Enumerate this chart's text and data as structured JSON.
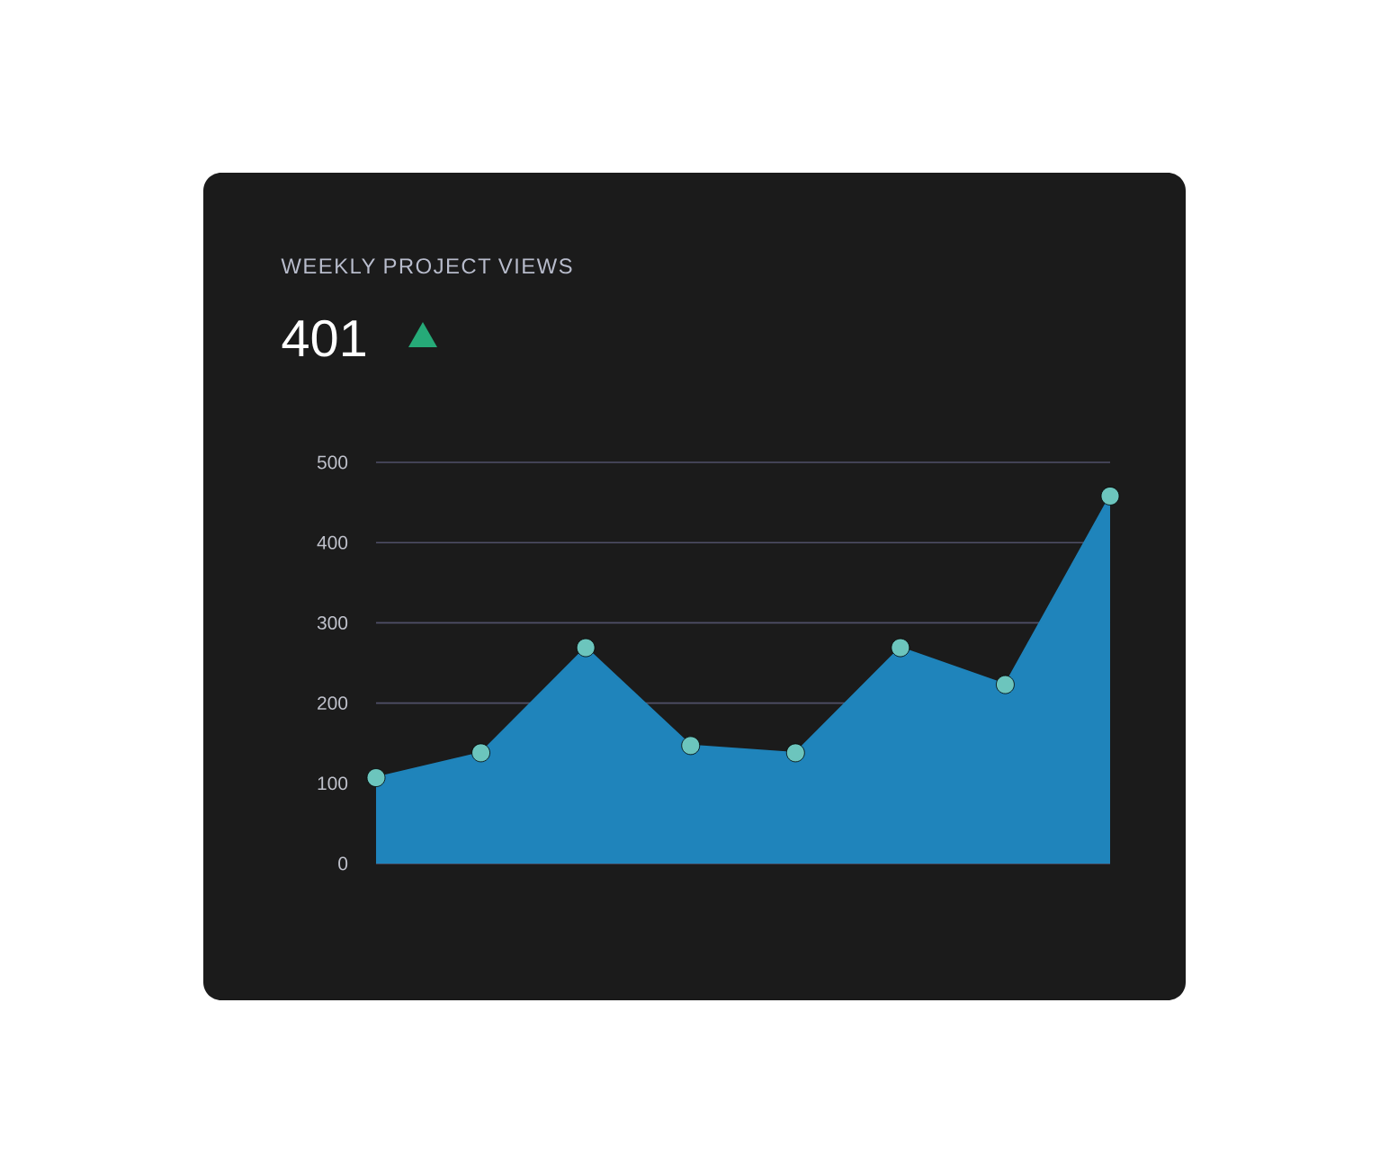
{
  "chart_data": {
    "type": "area",
    "title": "WEEKLY PROJECT VIEWS",
    "subtitle": "401",
    "categories": [
      null,
      null,
      null,
      null,
      null,
      null,
      null,
      null
    ],
    "series": [
      {
        "color": "#1f84bb",
        "values": [
          107,
          138,
          269,
          147,
          138,
          269,
          223,
          458
        ]
      }
    ],
    "ylim": [
      0,
      500
    ],
    "yticks": [
      0,
      100,
      200,
      300,
      400,
      500
    ],
    "grid": "y",
    "marker": "circle",
    "tick_labels": "y"
  }
}
